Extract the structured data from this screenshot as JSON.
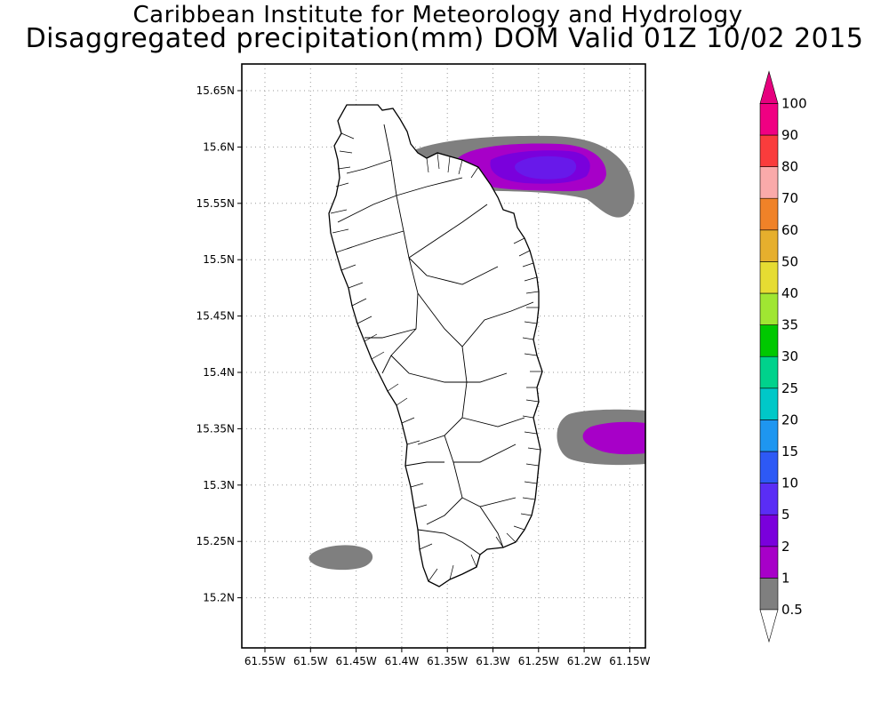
{
  "header": {
    "institution": "Caribbean Institute for Meteorology and Hydrology",
    "product": "Disaggregated precipitation(mm) DOM Valid 01Z 10/02 2015"
  },
  "map": {
    "lon_ticks": [
      "61.55W",
      "61.5W",
      "61.45W",
      "61.4W",
      "61.35W",
      "61.3W",
      "61.25W",
      "61.2W",
      "61.15W"
    ],
    "lat_ticks": [
      "15.65N",
      "15.6N",
      "15.55N",
      "15.5N",
      "15.45N",
      "15.4N",
      "15.35N",
      "15.3N",
      "15.25N",
      "15.2N"
    ],
    "grid": true
  },
  "colorbar": {
    "levels": [
      "0.5",
      "1",
      "2",
      "5",
      "10",
      "15",
      "20",
      "25",
      "30",
      "35",
      "40",
      "50",
      "60",
      "70",
      "80",
      "90",
      "100"
    ],
    "colors": [
      "#7f7f7f",
      "#a700c8",
      "#7a00dc",
      "#5a2df5",
      "#2d59f5",
      "#1e96f0",
      "#00c8c8",
      "#00d28c",
      "#00c800",
      "#a0e632",
      "#e6dc32",
      "#e6af2d",
      "#f08228",
      "#faaaaa",
      "#fa3c3c",
      "#f00082"
    ],
    "below_color": "#ffffff",
    "above_color": "#e6007e"
  },
  "precip_areas": [
    {
      "name": "north-band",
      "lon": -61.26,
      "lat": 15.578,
      "max_level": "5"
    },
    {
      "name": "east-band",
      "lon": -61.165,
      "lat": 15.343,
      "max_level": "2"
    },
    {
      "name": "southwest-patch",
      "lon": -61.465,
      "lat": 15.236,
      "max_level": "0.5"
    }
  ]
}
